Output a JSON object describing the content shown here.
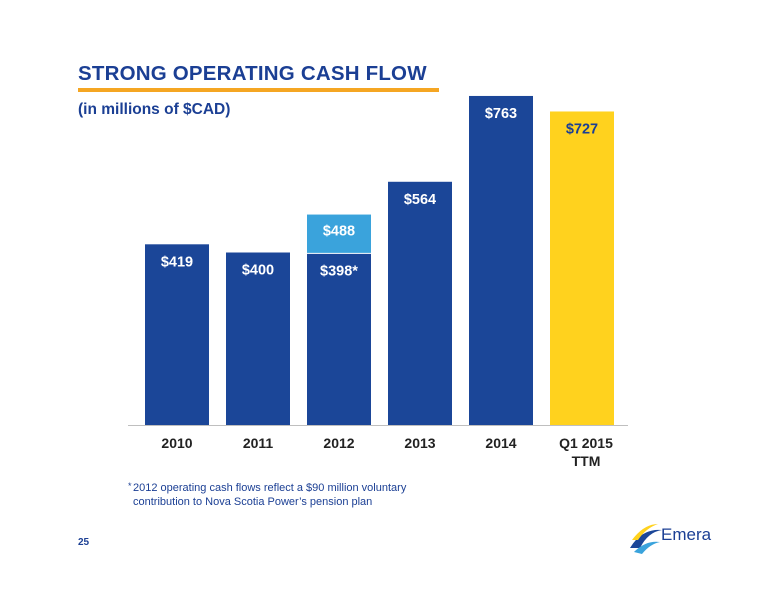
{
  "slide": {
    "title": "STRONG OPERATING CASH FLOW",
    "subtitle": "(in millions of $CAD)",
    "page_number": "25",
    "footnote_marker": "*",
    "footnote": "2012 operating cash flows reflect a $90 million voluntary contribution to Nova Scotia Power’s pension plan",
    "logo_text": "Emera",
    "logo_icon": "emera-swoosh-icon",
    "colors": {
      "primary_blue": "#1b4698",
      "light_blue": "#3aa3dc",
      "highlight_yellow": "#ffd21e",
      "rule_orange": "#f5a623"
    }
  },
  "chart_data": {
    "type": "bar",
    "title": "",
    "xlabel": "",
    "ylabel": "",
    "ylim": [
      0,
      800
    ],
    "grid": false,
    "legend": "none",
    "categories": [
      "2010",
      "2011",
      "2012",
      "2013",
      "2014",
      "Q1 2015 TTM"
    ],
    "bars": [
      {
        "category": "2010",
        "value": 419,
        "label": "$419",
        "color": "#1b4698"
      },
      {
        "category": "2011",
        "value": 400,
        "label": "$400",
        "color": "#1b4698"
      },
      {
        "category": "2012",
        "value": 398,
        "label": "$398*",
        "color": "#1b4698",
        "stack_value": 488,
        "stack_label": "$488",
        "stack_color": "#3aa3dc"
      },
      {
        "category": "2013",
        "value": 564,
        "label": "$564",
        "color": "#1b4698"
      },
      {
        "category": "2014",
        "value": 763,
        "label": "$763",
        "color": "#1b4698"
      },
      {
        "category": "Q1 2015 TTM",
        "value": 727,
        "label": "$727",
        "color": "#ffd21e"
      }
    ]
  }
}
